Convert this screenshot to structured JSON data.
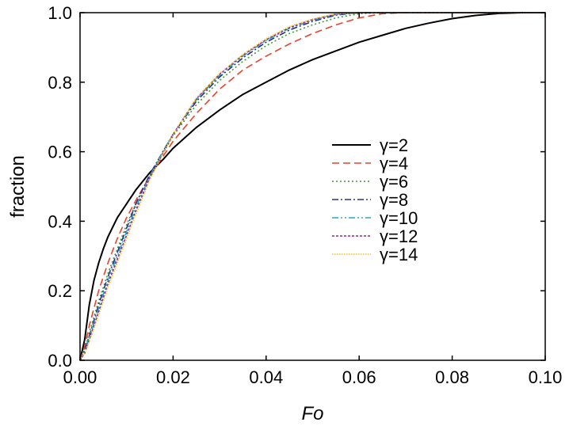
{
  "chart_data": {
    "type": "line",
    "title": "",
    "xlabel": "Fo",
    "ylabel": "fraction",
    "xlim": [
      0.0,
      0.1
    ],
    "ylim": [
      0.0,
      1.0
    ],
    "xticks": [
      "0.00",
      "0.02",
      "0.04",
      "0.06",
      "0.08",
      "0.10"
    ],
    "yticks": [
      "0.0",
      "0.2",
      "0.4",
      "0.6",
      "0.8",
      "1.0"
    ],
    "grid": false,
    "legend_position": "right-middle",
    "series": [
      {
        "name": "γ=2",
        "color": "#000000",
        "dash": "solid",
        "x": [
          0.001,
          0.002,
          0.003,
          0.004,
          0.005,
          0.006,
          0.008,
          0.01,
          0.012,
          0.015,
          0.018,
          0.02,
          0.025,
          0.03,
          0.035,
          0.04,
          0.045,
          0.05,
          0.055,
          0.06,
          0.065,
          0.07,
          0.075,
          0.08,
          0.085,
          0.09,
          0.095,
          0.1
        ],
        "y": [
          0.06,
          0.16,
          0.23,
          0.28,
          0.32,
          0.355,
          0.41,
          0.45,
          0.49,
          0.54,
          0.58,
          0.61,
          0.67,
          0.72,
          0.765,
          0.8,
          0.835,
          0.865,
          0.89,
          0.915,
          0.935,
          0.955,
          0.97,
          0.983,
          0.992,
          0.998,
          1.0,
          1.0
        ]
      },
      {
        "name": "γ=4",
        "color": "#e8432c",
        "dash": "dashed",
        "x": [
          0.001,
          0.002,
          0.004,
          0.006,
          0.008,
          0.01,
          0.012,
          0.015,
          0.018,
          0.02,
          0.025,
          0.03,
          0.035,
          0.04,
          0.045,
          0.05,
          0.055,
          0.06,
          0.065,
          0.07
        ],
        "y": [
          0.04,
          0.1,
          0.2,
          0.28,
          0.35,
          0.41,
          0.46,
          0.53,
          0.59,
          0.63,
          0.71,
          0.78,
          0.835,
          0.875,
          0.91,
          0.94,
          0.965,
          0.985,
          0.997,
          1.0
        ]
      },
      {
        "name": "γ=6",
        "color": "#3d9b35",
        "dash": "dotted",
        "x": [
          0.001,
          0.002,
          0.004,
          0.006,
          0.008,
          0.01,
          0.012,
          0.015,
          0.018,
          0.02,
          0.025,
          0.03,
          0.035,
          0.04,
          0.045,
          0.05,
          0.055,
          0.06,
          0.065
        ],
        "y": [
          0.03,
          0.08,
          0.17,
          0.25,
          0.32,
          0.39,
          0.45,
          0.53,
          0.6,
          0.645,
          0.735,
          0.805,
          0.86,
          0.905,
          0.94,
          0.965,
          0.985,
          0.997,
          1.0
        ]
      },
      {
        "name": "γ=8",
        "color": "#2b2e83",
        "dash": "dashdot",
        "x": [
          0.001,
          0.002,
          0.004,
          0.006,
          0.008,
          0.01,
          0.012,
          0.015,
          0.018,
          0.02,
          0.025,
          0.03,
          0.035,
          0.04,
          0.045,
          0.05,
          0.055,
          0.06
        ],
        "y": [
          0.03,
          0.07,
          0.16,
          0.24,
          0.31,
          0.38,
          0.45,
          0.535,
          0.605,
          0.65,
          0.745,
          0.815,
          0.87,
          0.915,
          0.95,
          0.975,
          0.993,
          1.0
        ]
      },
      {
        "name": "γ=10",
        "color": "#27a8c8",
        "dash": "dashdotdot",
        "x": [
          0.001,
          0.002,
          0.004,
          0.006,
          0.008,
          0.01,
          0.012,
          0.015,
          0.018,
          0.02,
          0.025,
          0.03,
          0.035,
          0.04,
          0.045,
          0.05,
          0.055,
          0.06
        ],
        "y": [
          0.025,
          0.065,
          0.15,
          0.23,
          0.3,
          0.37,
          0.44,
          0.53,
          0.605,
          0.65,
          0.75,
          0.82,
          0.875,
          0.92,
          0.955,
          0.978,
          0.995,
          1.0
        ]
      },
      {
        "name": "γ=12",
        "color": "#8c2a8c",
        "dash": "shortdot",
        "x": [
          0.001,
          0.002,
          0.004,
          0.006,
          0.008,
          0.01,
          0.012,
          0.015,
          0.018,
          0.02,
          0.025,
          0.03,
          0.035,
          0.04,
          0.045,
          0.05,
          0.055,
          0.06
        ],
        "y": [
          0.02,
          0.06,
          0.14,
          0.22,
          0.29,
          0.36,
          0.43,
          0.525,
          0.6,
          0.65,
          0.752,
          0.823,
          0.878,
          0.922,
          0.957,
          0.98,
          0.996,
          1.0
        ]
      },
      {
        "name": "γ=14",
        "color": "#f2c21a",
        "dash": "finedot",
        "x": [
          0.001,
          0.002,
          0.004,
          0.006,
          0.008,
          0.01,
          0.012,
          0.015,
          0.018,
          0.02,
          0.025,
          0.03,
          0.035,
          0.04,
          0.045,
          0.05,
          0.055,
          0.06
        ],
        "y": [
          0.02,
          0.055,
          0.13,
          0.21,
          0.28,
          0.35,
          0.42,
          0.52,
          0.6,
          0.65,
          0.755,
          0.825,
          0.88,
          0.925,
          0.96,
          0.982,
          0.997,
          1.0
        ]
      }
    ]
  }
}
